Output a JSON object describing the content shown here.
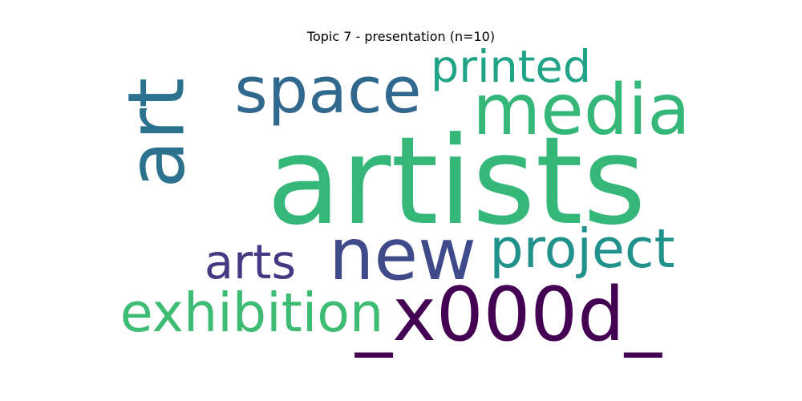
{
  "chart_data": {
    "type": "wordcloud",
    "title": "Topic 7 - presentation (n=10)",
    "words": [
      {
        "text": "artists",
        "color": "#35b779"
      },
      {
        "text": "new",
        "color": "#3e4a89"
      },
      {
        "text": "_x000d_",
        "color": "#440154"
      },
      {
        "text": "media",
        "color": "#35b779"
      },
      {
        "text": "space",
        "color": "#31688e"
      },
      {
        "text": "art",
        "color": "#2c728e"
      },
      {
        "text": "project",
        "color": "#21918c"
      },
      {
        "text": "exhibition",
        "color": "#3fbc73"
      },
      {
        "text": "printed",
        "color": "#20a386"
      },
      {
        "text": "arts",
        "color": "#443983"
      }
    ]
  }
}
